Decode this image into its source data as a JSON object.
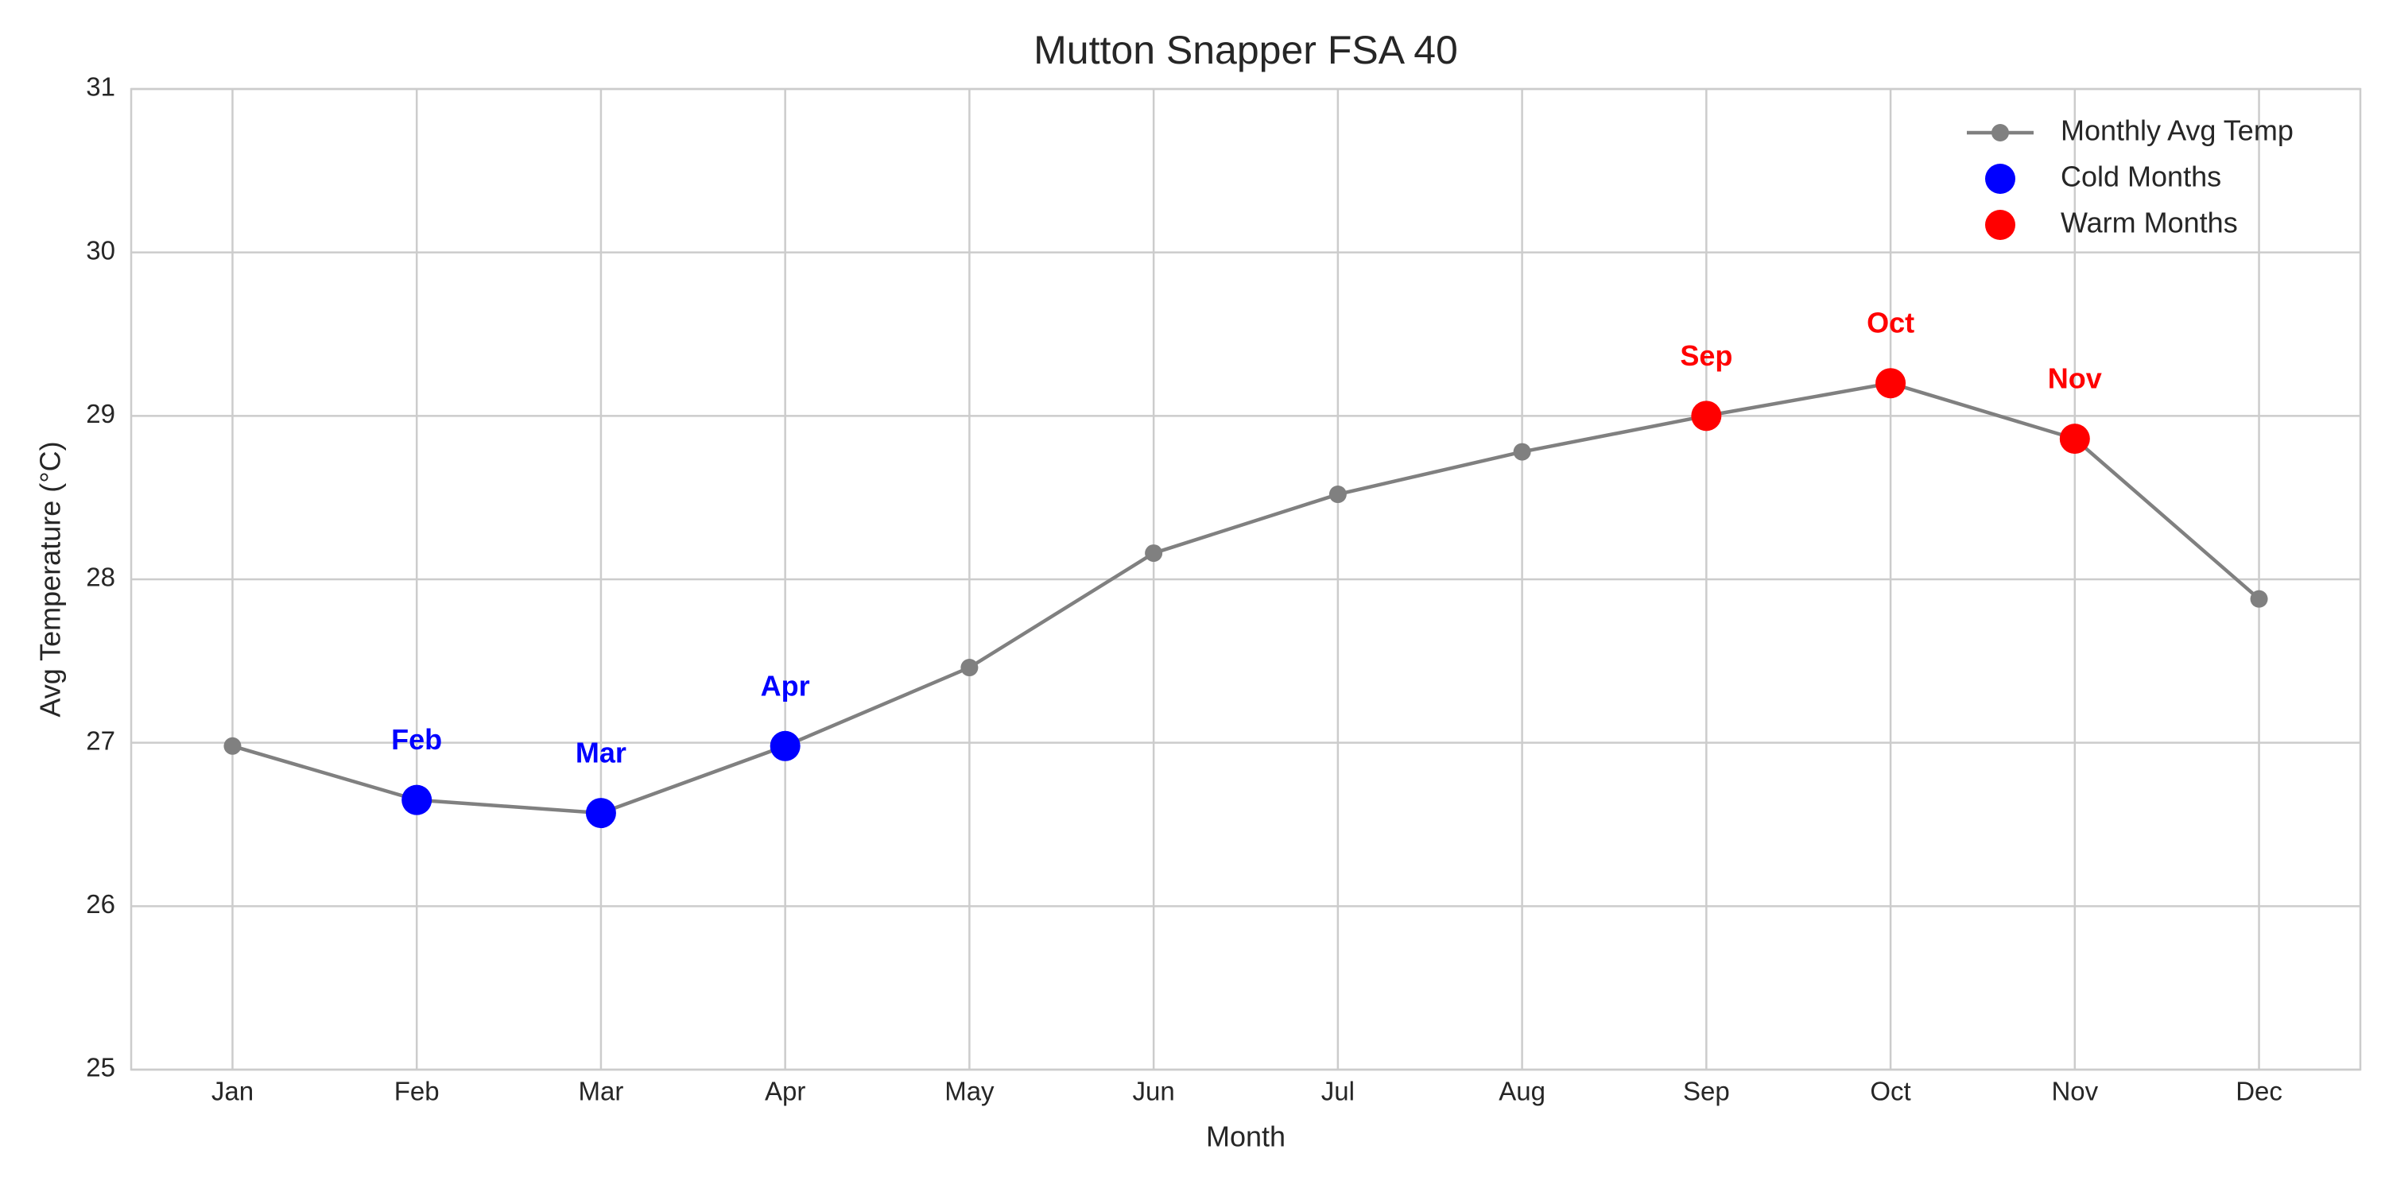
{
  "chart_data": {
    "type": "line",
    "title": "Mutton Snapper FSA 40",
    "x_label": "Month",
    "y_label": "Avg Temperature (°C)",
    "categories": [
      "Jan",
      "Feb",
      "Mar",
      "Apr",
      "May",
      "Jun",
      "Jul",
      "Aug",
      "Sep",
      "Oct",
      "Nov",
      "Dec"
    ],
    "series": [
      {
        "name": "Monthly Avg Temp",
        "type": "line",
        "color": "#808080",
        "values": [
          26.98,
          26.65,
          26.57,
          26.98,
          27.46,
          28.16,
          28.52,
          28.78,
          29.0,
          29.2,
          28.86,
          27.88
        ]
      },
      {
        "name": "Cold Months",
        "type": "scatter",
        "color": "#0000ff",
        "values": [
          null,
          26.65,
          26.57,
          26.98,
          null,
          null,
          null,
          null,
          null,
          null,
          null,
          null
        ]
      },
      {
        "name": "Warm Months",
        "type": "scatter",
        "color": "#ff0000",
        "values": [
          null,
          null,
          null,
          null,
          null,
          null,
          null,
          null,
          29.0,
          29.2,
          28.86,
          null
        ]
      }
    ],
    "ylim": [
      25,
      31
    ],
    "yticks": [
      25,
      26,
      27,
      28,
      29,
      30,
      31
    ],
    "grid": true,
    "legend": "upper right"
  }
}
